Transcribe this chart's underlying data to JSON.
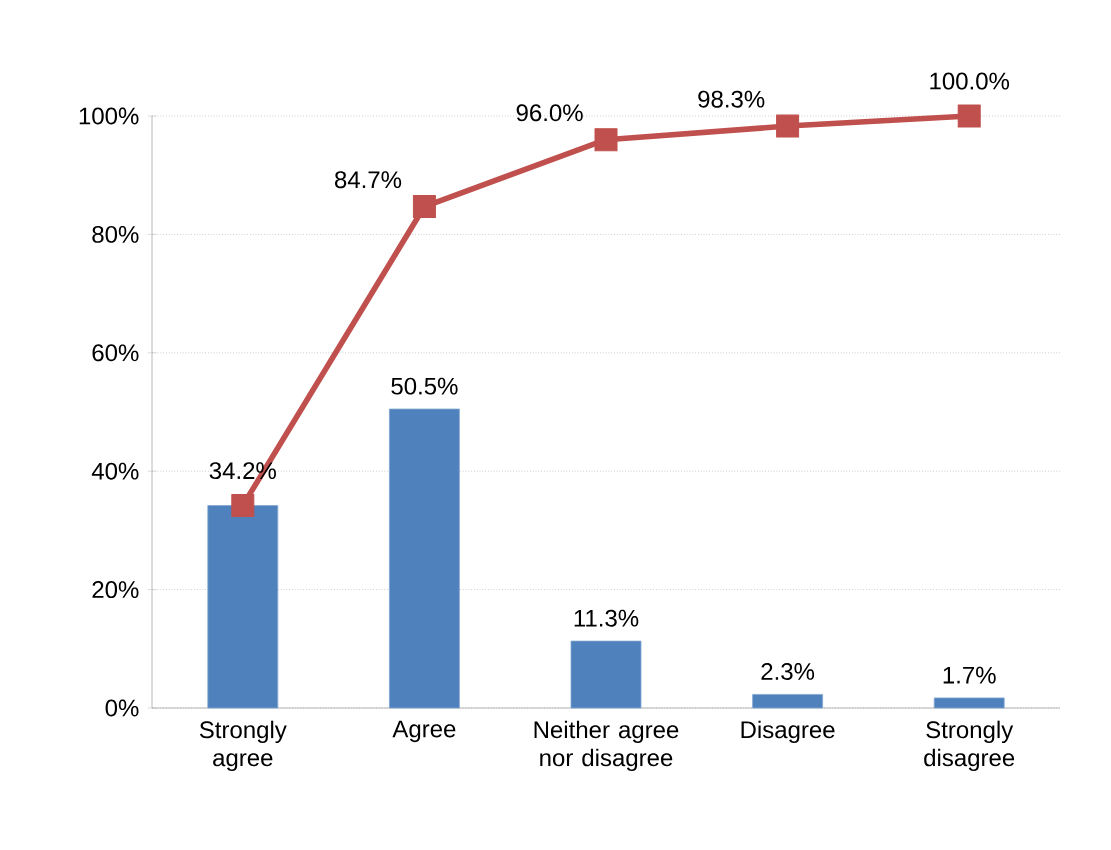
{
  "chart_data": {
    "type": "bar",
    "categories": [
      "Strongly agree",
      "Agree",
      "Neither agree nor disagree",
      "Disagree",
      "Strongly disagree"
    ],
    "series": [
      {
        "color": "#4f81bd",
        "values": [
          34.2,
          50.5,
          11.3,
          2.3,
          1.7
        ],
        "value_labels": [
          null,
          "50.5%",
          "11.3%",
          "2.3%",
          "1.7%"
        ]
      },
      {
        "type": "line",
        "color": "#c0504d",
        "marker": "square",
        "values": [
          34.2,
          84.7,
          96.0,
          98.3,
          100.0
        ],
        "value_labels": [
          "34.2%",
          "84.7%",
          "96.0%",
          "98.3%",
          "100.0%"
        ]
      }
    ],
    "ylim": [
      0,
      100
    ],
    "yticks": [
      {
        "value": 0,
        "label": "0%"
      },
      {
        "value": 20,
        "label": "20%"
      },
      {
        "value": 40,
        "label": "40%"
      },
      {
        "value": 60,
        "label": "60%"
      },
      {
        "value": 80,
        "label": "80%"
      },
      {
        "value": 100,
        "label": "100%"
      }
    ],
    "grid": "y"
  }
}
